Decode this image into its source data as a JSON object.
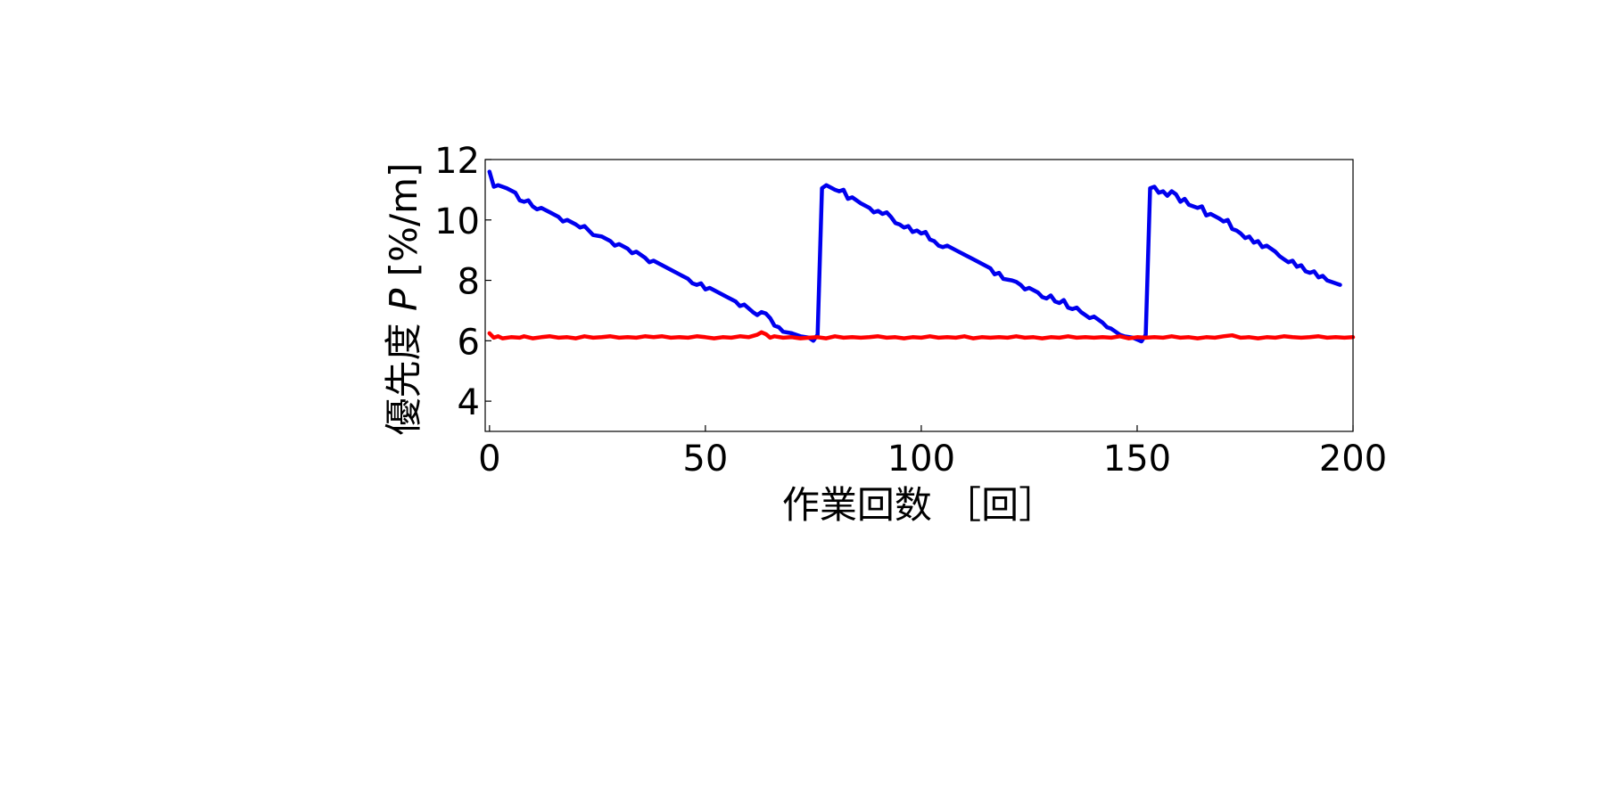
{
  "chart_data": {
    "type": "line",
    "title": "",
    "xlabel": "作業回数 ［回］",
    "ylabel_main": "優先度 ",
    "ylabel_var": "P",
    "ylabel_unit": " [%/m]",
    "xlim": [
      -1,
      200
    ],
    "ylim": [
      3,
      12
    ],
    "xticks": [
      0,
      50,
      100,
      150,
      200
    ],
    "yticks": [
      4,
      6,
      8,
      10,
      12
    ],
    "grid": false,
    "legend": "none",
    "series": [
      {
        "color": "#0000ee",
        "points": [
          [
            0,
            11.6
          ],
          [
            1,
            11.1
          ],
          [
            2,
            11.15
          ],
          [
            4,
            11.05
          ],
          [
            6,
            10.9
          ],
          [
            7,
            10.65
          ],
          [
            8,
            10.6
          ],
          [
            9,
            10.65
          ],
          [
            10,
            10.45
          ],
          [
            11,
            10.35
          ],
          [
            12,
            10.4
          ],
          [
            14,
            10.25
          ],
          [
            16,
            10.1
          ],
          [
            17,
            9.95
          ],
          [
            18,
            10.0
          ],
          [
            20,
            9.85
          ],
          [
            21,
            9.75
          ],
          [
            22,
            9.8
          ],
          [
            24,
            9.5
          ],
          [
            26,
            9.45
          ],
          [
            28,
            9.3
          ],
          [
            29,
            9.15
          ],
          [
            30,
            9.2
          ],
          [
            32,
            9.05
          ],
          [
            33,
            8.9
          ],
          [
            34,
            8.95
          ],
          [
            36,
            8.75
          ],
          [
            37,
            8.6
          ],
          [
            38,
            8.65
          ],
          [
            40,
            8.5
          ],
          [
            42,
            8.35
          ],
          [
            44,
            8.2
          ],
          [
            46,
            8.05
          ],
          [
            47,
            7.9
          ],
          [
            48,
            7.85
          ],
          [
            49,
            7.9
          ],
          [
            50,
            7.7
          ],
          [
            51,
            7.75
          ],
          [
            53,
            7.6
          ],
          [
            55,
            7.45
          ],
          [
            57,
            7.3
          ],
          [
            58,
            7.15
          ],
          [
            59,
            7.2
          ],
          [
            61,
            6.95
          ],
          [
            62,
            6.85
          ],
          [
            63,
            6.95
          ],
          [
            64,
            6.9
          ],
          [
            65,
            6.75
          ],
          [
            66,
            6.5
          ],
          [
            67,
            6.45
          ],
          [
            68,
            6.3
          ],
          [
            70,
            6.25
          ],
          [
            72,
            6.15
          ],
          [
            74,
            6.1
          ],
          [
            75,
            6.0
          ],
          [
            76,
            6.2
          ],
          [
            77,
            11.05
          ],
          [
            78,
            11.15
          ],
          [
            80,
            11.0
          ],
          [
            81,
            10.95
          ],
          [
            82,
            11.0
          ],
          [
            83,
            10.7
          ],
          [
            84,
            10.75
          ],
          [
            86,
            10.55
          ],
          [
            88,
            10.4
          ],
          [
            89,
            10.25
          ],
          [
            90,
            10.3
          ],
          [
            91,
            10.2
          ],
          [
            92,
            10.25
          ],
          [
            93,
            10.1
          ],
          [
            94,
            9.9
          ],
          [
            95,
            9.85
          ],
          [
            96,
            9.75
          ],
          [
            97,
            9.8
          ],
          [
            98,
            9.6
          ],
          [
            99,
            9.65
          ],
          [
            100,
            9.55
          ],
          [
            101,
            9.6
          ],
          [
            102,
            9.35
          ],
          [
            103,
            9.3
          ],
          [
            104,
            9.15
          ],
          [
            105,
            9.1
          ],
          [
            106,
            9.15
          ],
          [
            108,
            9.0
          ],
          [
            110,
            8.85
          ],
          [
            112,
            8.7
          ],
          [
            114,
            8.55
          ],
          [
            116,
            8.4
          ],
          [
            117,
            8.2
          ],
          [
            118,
            8.25
          ],
          [
            119,
            8.05
          ],
          [
            121,
            8.0
          ],
          [
            122,
            7.95
          ],
          [
            123,
            7.85
          ],
          [
            124,
            7.7
          ],
          [
            125,
            7.75
          ],
          [
            127,
            7.6
          ],
          [
            128,
            7.45
          ],
          [
            129,
            7.4
          ],
          [
            130,
            7.5
          ],
          [
            131,
            7.3
          ],
          [
            132,
            7.25
          ],
          [
            133,
            7.35
          ],
          [
            134,
            7.1
          ],
          [
            135,
            7.05
          ],
          [
            136,
            7.1
          ],
          [
            137,
            6.95
          ],
          [
            138,
            6.85
          ],
          [
            139,
            6.75
          ],
          [
            140,
            6.8
          ],
          [
            142,
            6.6
          ],
          [
            143,
            6.45
          ],
          [
            144,
            6.4
          ],
          [
            145,
            6.3
          ],
          [
            146,
            6.2
          ],
          [
            147,
            6.15
          ],
          [
            149,
            6.1
          ],
          [
            151,
            5.98
          ],
          [
            152,
            6.2
          ],
          [
            153,
            11.05
          ],
          [
            154,
            11.1
          ],
          [
            155,
            10.9
          ],
          [
            156,
            10.95
          ],
          [
            157,
            10.8
          ],
          [
            158,
            10.95
          ],
          [
            159,
            10.85
          ],
          [
            160,
            10.6
          ],
          [
            161,
            10.7
          ],
          [
            162,
            10.5
          ],
          [
            164,
            10.4
          ],
          [
            165,
            10.45
          ],
          [
            166,
            10.15
          ],
          [
            167,
            10.2
          ],
          [
            169,
            10.05
          ],
          [
            170,
            9.95
          ],
          [
            171,
            10.0
          ],
          [
            172,
            9.7
          ],
          [
            173,
            9.65
          ],
          [
            174,
            9.55
          ],
          [
            175,
            9.4
          ],
          [
            176,
            9.45
          ],
          [
            177,
            9.25
          ],
          [
            178,
            9.3
          ],
          [
            179,
            9.1
          ],
          [
            180,
            9.15
          ],
          [
            182,
            8.95
          ],
          [
            183,
            8.8
          ],
          [
            184,
            8.7
          ],
          [
            185,
            8.6
          ],
          [
            186,
            8.65
          ],
          [
            187,
            8.45
          ],
          [
            188,
            8.5
          ],
          [
            189,
            8.3
          ],
          [
            190,
            8.25
          ],
          [
            191,
            8.3
          ],
          [
            192,
            8.1
          ],
          [
            193,
            8.15
          ],
          [
            194,
            8.0
          ],
          [
            195,
            7.95
          ],
          [
            197,
            7.85
          ]
        ]
      },
      {
        "color": "#ff0000",
        "points": [
          [
            0,
            6.25
          ],
          [
            1,
            6.1
          ],
          [
            2,
            6.15
          ],
          [
            3,
            6.08
          ],
          [
            5,
            6.12
          ],
          [
            7,
            6.1
          ],
          [
            8,
            6.15
          ],
          [
            10,
            6.08
          ],
          [
            12,
            6.12
          ],
          [
            14,
            6.15
          ],
          [
            16,
            6.1
          ],
          [
            18,
            6.12
          ],
          [
            20,
            6.08
          ],
          [
            22,
            6.15
          ],
          [
            24,
            6.1
          ],
          [
            26,
            6.12
          ],
          [
            28,
            6.15
          ],
          [
            30,
            6.1
          ],
          [
            32,
            6.12
          ],
          [
            34,
            6.1
          ],
          [
            36,
            6.15
          ],
          [
            38,
            6.12
          ],
          [
            40,
            6.15
          ],
          [
            42,
            6.1
          ],
          [
            44,
            6.12
          ],
          [
            46,
            6.1
          ],
          [
            48,
            6.15
          ],
          [
            50,
            6.12
          ],
          [
            52,
            6.08
          ],
          [
            54,
            6.12
          ],
          [
            56,
            6.1
          ],
          [
            58,
            6.15
          ],
          [
            60,
            6.12
          ],
          [
            62,
            6.2
          ],
          [
            63,
            6.28
          ],
          [
            64,
            6.22
          ],
          [
            65,
            6.1
          ],
          [
            66,
            6.15
          ],
          [
            68,
            6.1
          ],
          [
            70,
            6.12
          ],
          [
            72,
            6.08
          ],
          [
            74,
            6.1
          ],
          [
            76,
            6.12
          ],
          [
            78,
            6.08
          ],
          [
            80,
            6.15
          ],
          [
            82,
            6.1
          ],
          [
            84,
            6.12
          ],
          [
            86,
            6.1
          ],
          [
            88,
            6.12
          ],
          [
            90,
            6.15
          ],
          [
            92,
            6.1
          ],
          [
            94,
            6.12
          ],
          [
            96,
            6.08
          ],
          [
            98,
            6.12
          ],
          [
            100,
            6.1
          ],
          [
            102,
            6.15
          ],
          [
            104,
            6.1
          ],
          [
            106,
            6.12
          ],
          [
            108,
            6.1
          ],
          [
            110,
            6.15
          ],
          [
            112,
            6.08
          ],
          [
            114,
            6.12
          ],
          [
            116,
            6.1
          ],
          [
            118,
            6.12
          ],
          [
            120,
            6.1
          ],
          [
            122,
            6.15
          ],
          [
            124,
            6.1
          ],
          [
            126,
            6.12
          ],
          [
            128,
            6.08
          ],
          [
            130,
            6.12
          ],
          [
            132,
            6.1
          ],
          [
            134,
            6.15
          ],
          [
            136,
            6.1
          ],
          [
            138,
            6.12
          ],
          [
            140,
            6.1
          ],
          [
            142,
            6.12
          ],
          [
            144,
            6.1
          ],
          [
            146,
            6.15
          ],
          [
            148,
            6.08
          ],
          [
            150,
            6.12
          ],
          [
            152,
            6.1
          ],
          [
            154,
            6.12
          ],
          [
            156,
            6.1
          ],
          [
            158,
            6.15
          ],
          [
            160,
            6.1
          ],
          [
            162,
            6.12
          ],
          [
            164,
            6.08
          ],
          [
            166,
            6.12
          ],
          [
            168,
            6.1
          ],
          [
            170,
            6.15
          ],
          [
            172,
            6.18
          ],
          [
            174,
            6.1
          ],
          [
            176,
            6.12
          ],
          [
            178,
            6.08
          ],
          [
            180,
            6.12
          ],
          [
            182,
            6.1
          ],
          [
            184,
            6.15
          ],
          [
            186,
            6.12
          ],
          [
            188,
            6.1
          ],
          [
            190,
            6.12
          ],
          [
            192,
            6.15
          ],
          [
            194,
            6.1
          ],
          [
            196,
            6.12
          ],
          [
            198,
            6.1
          ],
          [
            200,
            6.12
          ]
        ]
      }
    ]
  }
}
